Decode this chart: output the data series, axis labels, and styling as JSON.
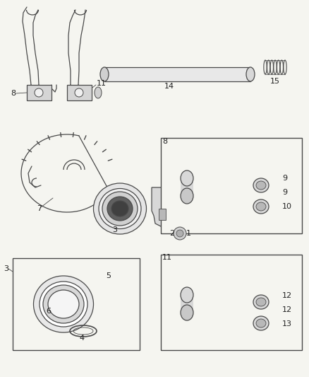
{
  "bg_color": "#f5f5f0",
  "line_color": "#4a4a4a",
  "fig_width": 4.38,
  "fig_height": 5.33,
  "dpi": 100
}
